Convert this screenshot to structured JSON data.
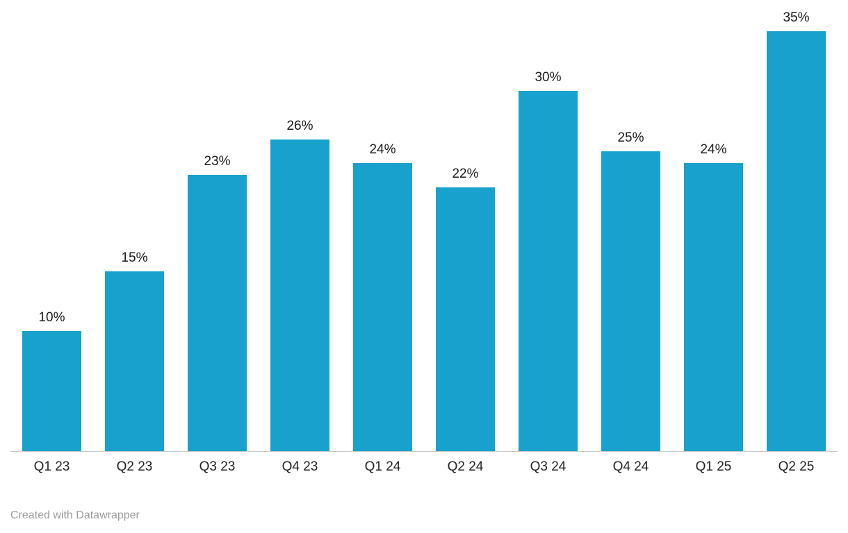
{
  "chart_data": {
    "type": "bar",
    "categories": [
      "Q1 23",
      "Q2 23",
      "Q3 23",
      "Q4 23",
      "Q1 24",
      "Q2 24",
      "Q3 24",
      "Q4 24",
      "Q1 25",
      "Q2 25"
    ],
    "values": [
      10,
      15,
      23,
      26,
      24,
      22,
      30,
      25,
      24,
      35
    ],
    "value_labels": [
      "10%",
      "15%",
      "23%",
      "26%",
      "24%",
      "22%",
      "30%",
      "25%",
      "24%",
      "35%"
    ],
    "title": "",
    "xlabel": "",
    "ylabel": "",
    "ylim": [
      0,
      36
    ],
    "grid": false,
    "legend": "none",
    "bar_color": "#18a1cd",
    "value_label_color": "#1a1a1a",
    "axis_label_color": "#222222",
    "baseline_color": "#c8c8c8"
  },
  "footer": {
    "credit": "Created with Datawrapper"
  }
}
